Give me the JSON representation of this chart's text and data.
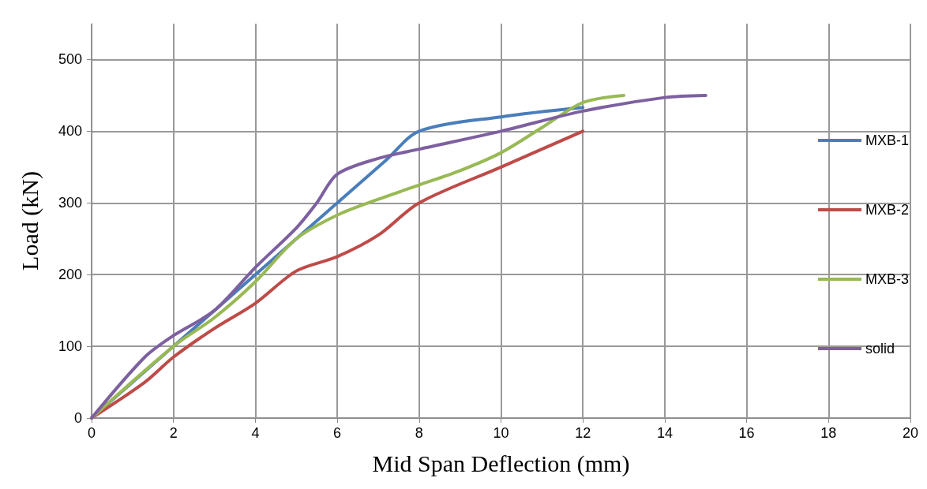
{
  "chart_data": {
    "type": "line",
    "xlabel": "Mid Span Deflection (mm)",
    "ylabel": "Load (kN)",
    "xlim": [
      0,
      20
    ],
    "xticks": [
      0,
      2,
      4,
      6,
      8,
      10,
      12,
      14,
      16,
      18,
      20
    ],
    "ylim": [
      0,
      550
    ],
    "yticks": [
      0,
      100,
      200,
      300,
      400,
      500
    ],
    "grid": true,
    "legend": "right",
    "marker": "none",
    "line_style": "solid",
    "series": [
      {
        "name": "MXB-1",
        "color": "#4a7ebb",
        "x": [
          0,
          2,
          4,
          6,
          7.2,
          8,
          10,
          12
        ],
        "values": [
          0,
          100,
          200,
          300,
          360,
          400,
          420,
          433
        ]
      },
      {
        "name": "MXB-2",
        "color": "#be4b48",
        "x": [
          0,
          1.3,
          2,
          3,
          4,
          5,
          6,
          7,
          8,
          10,
          12
        ],
        "values": [
          0,
          50,
          85,
          125,
          160,
          205,
          225,
          255,
          300,
          350,
          400
        ]
      },
      {
        "name": "MXB-3",
        "color": "#98b954",
        "x": [
          0,
          2,
          3,
          4,
          5,
          6,
          7,
          8,
          9,
          10,
          11,
          12,
          13
        ],
        "values": [
          0,
          100,
          140,
          190,
          250,
          283,
          305,
          325,
          345,
          370,
          405,
          440,
          450
        ]
      },
      {
        "name": "solid",
        "color": "#7d60a0",
        "x": [
          0,
          1.3,
          2,
          3,
          4,
          5,
          5.5,
          6,
          7,
          8,
          10,
          12,
          14,
          15
        ],
        "values": [
          0,
          85,
          115,
          150,
          210,
          265,
          300,
          340,
          362,
          375,
          400,
          428,
          447,
          450
        ]
      }
    ]
  }
}
